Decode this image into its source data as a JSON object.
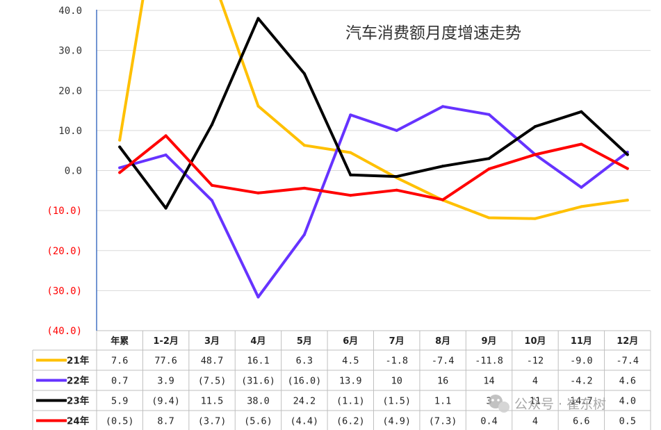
{
  "chart_data": {
    "type": "line",
    "title": "汽车消费额月度增速走势",
    "categories": [
      "年累",
      "1-2月",
      "3月",
      "4月",
      "5月",
      "6月",
      "7月",
      "8月",
      "9月",
      "10月",
      "11月",
      "12月"
    ],
    "ylim": [
      -40,
      40
    ],
    "yticks": [
      {
        "value": 40,
        "label": "40.0"
      },
      {
        "value": 30,
        "label": "30.0"
      },
      {
        "value": 20,
        "label": "20.0"
      },
      {
        "value": 10,
        "label": "10.0"
      },
      {
        "value": 0,
        "label": "0.0"
      },
      {
        "value": -10,
        "label": "(10.0)"
      },
      {
        "value": -20,
        "label": "(20.0)"
      },
      {
        "value": -30,
        "label": "(30.0)"
      },
      {
        "value": -40,
        "label": "(40.0)"
      }
    ],
    "negative_tick_color": "#ff0000",
    "positive_tick_color": "#333333",
    "grid": true,
    "legend": "data-table",
    "series": [
      {
        "name": "21年",
        "color": "#ffc000",
        "values": [
          7.6,
          77.6,
          48.7,
          16.1,
          6.3,
          4.5,
          -1.8,
          -7.4,
          -11.8,
          -12,
          -9.0,
          -7.4
        ],
        "labels": [
          "7.6",
          "77.6",
          "48.7",
          "16.1",
          "6.3",
          "4.5",
          "-1.8",
          "-7.4",
          "-11.8",
          "-12",
          "-9.0",
          "-7.4"
        ]
      },
      {
        "name": "22年",
        "color": "#6633ff",
        "values": [
          0.7,
          3.9,
          -7.5,
          -31.6,
          -16.0,
          13.9,
          10,
          16,
          14,
          4,
          -4.2,
          4.6
        ],
        "labels": [
          "0.7",
          "3.9",
          "(7.5)",
          "(31.6)",
          "(16.0)",
          "13.9",
          "10",
          "16",
          "14",
          "4",
          "-4.2",
          "4.6"
        ]
      },
      {
        "name": "23年",
        "color": "#000000",
        "values": [
          5.9,
          -9.4,
          11.5,
          38.0,
          24.2,
          -1.1,
          -1.5,
          1.1,
          3,
          11,
          14.7,
          4.0
        ],
        "labels": [
          "5.9",
          "(9.4)",
          "11.5",
          "38.0",
          "24.2",
          "(1.1)",
          "(1.5)",
          "1.1",
          "3",
          "11",
          "14.7",
          "4.0"
        ]
      },
      {
        "name": "24年",
        "color": "#ff0000",
        "values": [
          -0.5,
          8.7,
          -3.7,
          -5.6,
          -4.4,
          -6.2,
          -4.9,
          -7.3,
          0.4,
          4,
          6.6,
          0.5
        ],
        "labels": [
          "(0.5)",
          "8.7",
          "(3.7)",
          "(5.6)",
          "(4.4)",
          "(6.2)",
          "(4.9)",
          "(7.3)",
          "0.4",
          "4",
          "6.6",
          "0.5"
        ]
      }
    ]
  },
  "watermark": {
    "text": "公众号 · 崔东树",
    "icon": "wechat-icon"
  }
}
